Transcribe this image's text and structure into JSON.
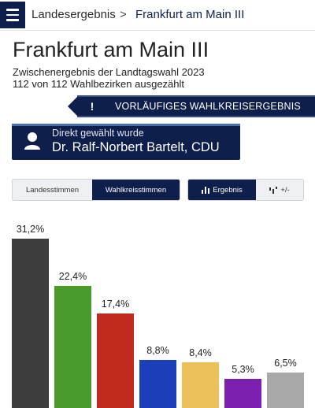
{
  "breadcrumb": {
    "parent": "Landesergebnis",
    "separator": ">",
    "current": "Frankfurt am Main III"
  },
  "page": {
    "title": "Frankfurt am Main III",
    "subtitle": "Zwischenergebnis der Landtagswahl 2023",
    "progress_text": "112 von 112 Wahlbezirken ausgezählt"
  },
  "notice": {
    "icon": "exclamation-icon",
    "text": "VORLÄUFIGES WAHLKREISERGEBNIS"
  },
  "direct_mandate": {
    "label": "Direkt gewählt wurde",
    "name": "Dr. Ralf-Norbert Bartelt, CDU",
    "icon": "person-icon"
  },
  "vote_toggle": {
    "options": [
      "Landesstimmen",
      "Wahlkreisstimmen"
    ],
    "selected": "Wahlkreisstimmen"
  },
  "view_toggle": {
    "options": [
      "Ergebnis",
      "+/-"
    ],
    "selected": "Ergebnis"
  },
  "colors": {
    "primary": "#0f1f4b"
  },
  "chart_data": {
    "type": "bar",
    "values": [
      31.2,
      22.4,
      17.4,
      8.8,
      8.4,
      5.3,
      6.5
    ],
    "labels": [
      "31,2%",
      "22,4%",
      "17,4%",
      "8,8%",
      "8,4%",
      "5,3%",
      "6,5%"
    ],
    "colors": [
      "#3c3c3c",
      "#4a9a2e",
      "#c12a1e",
      "#1b3fb8",
      "#ecc05a",
      "#7a1fb0",
      "#a9a9a9"
    ],
    "unit": "%"
  }
}
